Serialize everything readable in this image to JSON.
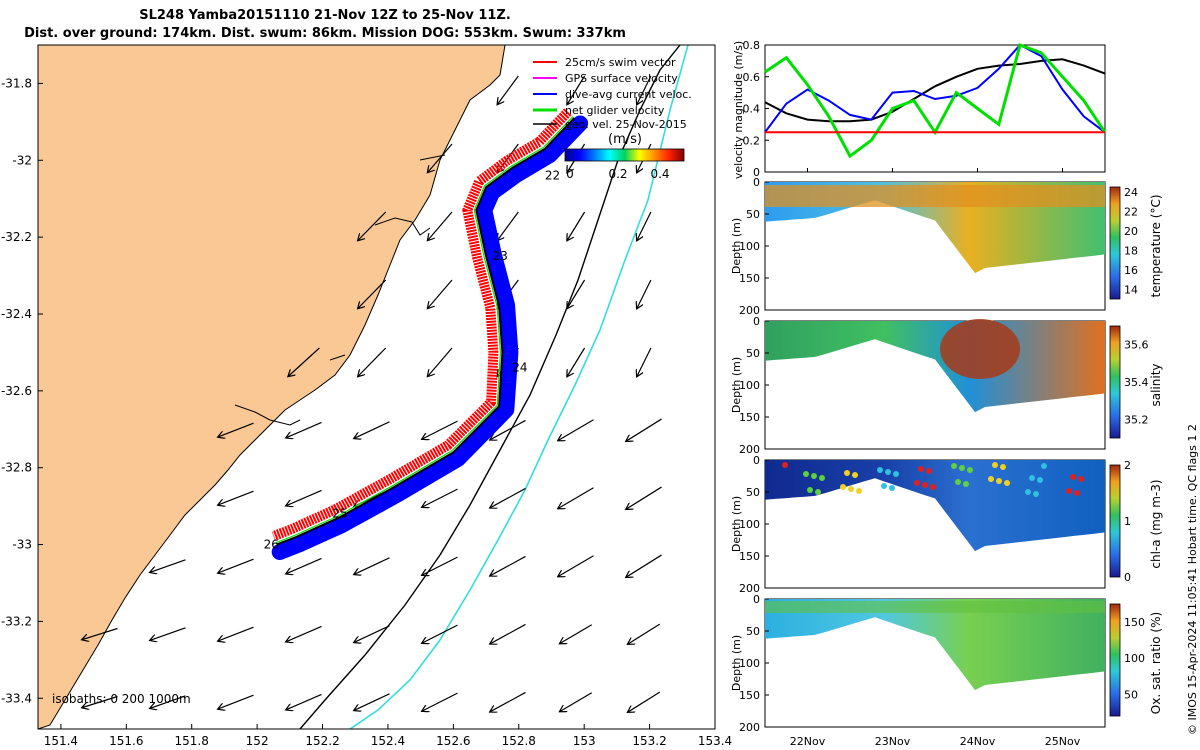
{
  "title_line1": "SL248 Yamba20151110 21-Nov 12Z to 25-Nov 11Z.",
  "title_line2": "Dist. over ground: 174km. Dist. swum: 86km. Mission DOG: 553km. Swum: 337km",
  "credit": "© IMOS 15-Apr-2024 11:05:41 Hobart time. QC flags 1  2",
  "colors": {
    "land": "#f9c894",
    "swim_vector": "#ff0000",
    "gps_velocity": "#ff00ff",
    "dive_avg_current": "#0000ff",
    "glider_velocity": "#00e000",
    "geo_velocity": "#000000",
    "isobath_1000m": "#33dddd"
  },
  "chart_data": [
    {
      "type": "map",
      "title": "SL248 Yamba20151110 21-Nov 12Z to 25-Nov 11Z.",
      "lon_ticks": [
        "151.4",
        "151.6",
        "151.8",
        "152",
        "152.2",
        "152.4",
        "152.6",
        "152.8",
        "153",
        "153.2",
        "153.4"
      ],
      "lat_ticks": [
        "-31.8",
        "-32",
        "-32.2",
        "-32.4",
        "-32.6",
        "-32.8",
        "-33",
        "-33.2",
        "-33.4"
      ],
      "xlim": [
        151.33,
        153.4
      ],
      "ylim": [
        -33.48,
        -31.7
      ],
      "legend": [
        "25cm/s swim vector",
        "GPS surface velocity",
        "dive-avg current veloc.",
        "net glider velocity",
        "geo. vel. 25-Nov-2015"
      ],
      "legend_placement": "top-right",
      "colorbar": {
        "label": "(m/s)",
        "ticks": [
          "0",
          "0.2",
          "0.4"
        ]
      },
      "isobath_label": "isobaths: 0  200  1000m",
      "day_labels": [
        {
          "text": "22",
          "lon": 152.88,
          "lat": -32.05
        },
        {
          "text": "23",
          "lon": 152.72,
          "lat": -32.26
        },
        {
          "text": "24",
          "lon": 152.78,
          "lat": -32.55
        },
        {
          "text": "25",
          "lon": 152.23,
          "lat": -32.93
        },
        {
          "text": "26",
          "lon": 152.02,
          "lat": -33.01
        }
      ],
      "glider_track": [
        {
          "lon": 152.97,
          "lat": -31.89
        },
        {
          "lon": 152.88,
          "lat": -31.97
        },
        {
          "lon": 152.78,
          "lat": -32.02
        },
        {
          "lon": 152.7,
          "lat": -32.07
        },
        {
          "lon": 152.67,
          "lat": -32.13
        },
        {
          "lon": 152.7,
          "lat": -32.25
        },
        {
          "lon": 152.74,
          "lat": -32.38
        },
        {
          "lon": 152.75,
          "lat": -32.5
        },
        {
          "lon": 152.74,
          "lat": -32.64
        },
        {
          "lon": 152.6,
          "lat": -32.76
        },
        {
          "lon": 152.42,
          "lat": -32.85
        },
        {
          "lon": 152.25,
          "lat": -32.93
        },
        {
          "lon": 152.12,
          "lat": -32.98
        },
        {
          "lon": 152.06,
          "lat": -33.0
        }
      ]
    },
    {
      "type": "line",
      "ylabel": "velocity magnitude (m/s)",
      "ylim": [
        0,
        0.8
      ],
      "yticks": [
        "0",
        "0.2",
        "0.4",
        "0.6",
        "0.8"
      ],
      "x_ticks": [
        "22Nov",
        "23Nov",
        "24Nov",
        "25Nov"
      ],
      "x": [
        21.5,
        21.75,
        22.0,
        22.25,
        22.5,
        22.75,
        23.0,
        23.25,
        23.5,
        23.75,
        24.0,
        24.25,
        24.5,
        24.75,
        25.0,
        25.25,
        25.5
      ],
      "series": [
        {
          "color": "#000000",
          "values": [
            0.44,
            0.37,
            0.33,
            0.32,
            0.32,
            0.33,
            0.38,
            0.46,
            0.54,
            0.6,
            0.65,
            0.67,
            0.68,
            0.7,
            0.71,
            0.67,
            0.62
          ]
        },
        {
          "color": "#0000ff",
          "values": [
            0.25,
            0.43,
            0.52,
            0.45,
            0.36,
            0.33,
            0.5,
            0.51,
            0.46,
            0.48,
            0.53,
            0.65,
            0.8,
            0.73,
            0.52,
            0.35,
            0.25
          ]
        },
        {
          "color": "#00e000",
          "values": [
            0.63,
            0.72,
            0.55,
            0.35,
            0.1,
            0.2,
            0.4,
            0.45,
            0.25,
            0.5,
            0.4,
            0.3,
            0.8,
            0.75,
            0.6,
            0.45,
            0.25
          ]
        },
        {
          "color": "#ff0000",
          "values": [
            0.25,
            0.25,
            0.25,
            0.25,
            0.25,
            0.25,
            0.25,
            0.25,
            0.25,
            0.25,
            0.25,
            0.25,
            0.25,
            0.25,
            0.25,
            0.25,
            0.25
          ]
        }
      ]
    },
    {
      "type": "heatmap",
      "ylabel": "Depth (m)",
      "yticks": [
        "0",
        "50",
        "100",
        "150",
        "200"
      ],
      "ylim": [
        200,
        0
      ],
      "colorbar_label": "temperature (°C)",
      "colorbar_ticks": [
        "14",
        "16",
        "18",
        "20",
        "22",
        "24"
      ],
      "clim": [
        13,
        24.5
      ]
    },
    {
      "type": "heatmap",
      "ylabel": "Depth (m)",
      "yticks": [
        "0",
        "50",
        "100",
        "150",
        "200"
      ],
      "ylim": [
        200,
        0
      ],
      "colorbar_label": "salinity",
      "colorbar_ticks": [
        "35.2",
        "35.4",
        "35.6"
      ],
      "clim": [
        35.1,
        35.7
      ]
    },
    {
      "type": "heatmap",
      "ylabel": "Depth (m)",
      "yticks": [
        "0",
        "50",
        "100",
        "150",
        "200"
      ],
      "ylim": [
        200,
        0
      ],
      "colorbar_label": "chl-a (mg m-3)",
      "colorbar_ticks": [
        "0",
        "1",
        "2"
      ],
      "clim": [
        0,
        2
      ]
    },
    {
      "type": "heatmap",
      "ylabel": "Depth (m)",
      "yticks": [
        "0",
        "50",
        "100",
        "150",
        "200"
      ],
      "ylim": [
        200,
        0
      ],
      "colorbar_label": "Ox. sat. ratio (%)",
      "colorbar_ticks": [
        "50",
        "100",
        "150"
      ],
      "clim": [
        20,
        175
      ],
      "x_ticks": [
        "22Nov",
        "23Nov",
        "24Nov",
        "25Nov"
      ]
    }
  ]
}
